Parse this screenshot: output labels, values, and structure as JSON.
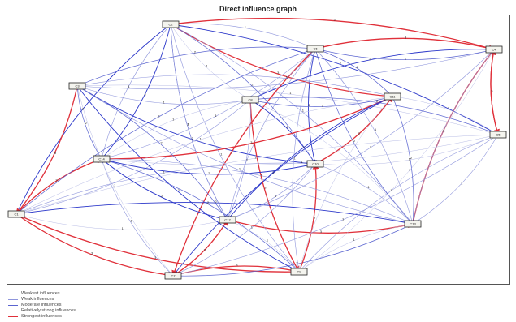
{
  "title": "Direct influence graph",
  "colors": {
    "weakest": "#b9bde6",
    "weak": "#8f96dc",
    "moderate": "#5a64d0",
    "relatively_strong": "#2a36c9",
    "strongest": "#e0303a"
  },
  "legend": [
    {
      "key": "weakest",
      "label": "Weakest influences"
    },
    {
      "key": "weak",
      "label": "Weak influences"
    },
    {
      "key": "moderate",
      "label": "Moderate influences"
    },
    {
      "key": "relatively_strong",
      "label": "Relatively strong influences"
    },
    {
      "key": "strongest",
      "label": "Strongest influences"
    }
  ],
  "nodes": [
    {
      "id": "n1",
      "label": "C1"
    },
    {
      "id": "n2",
      "label": "C2"
    },
    {
      "id": "n3",
      "label": "C3"
    },
    {
      "id": "n4",
      "label": "C4"
    },
    {
      "id": "n5",
      "label": "C5"
    },
    {
      "id": "n6",
      "label": "C6"
    },
    {
      "id": "n7",
      "label": "C7"
    },
    {
      "id": "n8",
      "label": "C8"
    },
    {
      "id": "n9",
      "label": "C9"
    },
    {
      "id": "n10",
      "label": "C10"
    },
    {
      "id": "n11",
      "label": "C11"
    },
    {
      "id": "n12",
      "label": "C12"
    },
    {
      "id": "n13",
      "label": "C13"
    },
    {
      "id": "n14",
      "label": "C14"
    }
  ],
  "edges": [
    {
      "from": "n1",
      "to": "n7",
      "level": "strongest",
      "label": "3"
    },
    {
      "from": "n1",
      "to": "n14",
      "level": "strongest",
      "label": "3"
    },
    {
      "from": "n1",
      "to": "n9",
      "level": "strongest",
      "label": "3"
    },
    {
      "from": "n1",
      "to": "n2",
      "level": "relatively_strong",
      "label": "2"
    },
    {
      "from": "n1",
      "to": "n3",
      "level": "moderate",
      "label": "2"
    },
    {
      "from": "n1",
      "to": "n6",
      "level": "moderate",
      "label": "2"
    },
    {
      "from": "n1",
      "to": "n8",
      "level": "weak",
      "label": "1"
    },
    {
      "from": "n1",
      "to": "n10",
      "level": "weak",
      "label": "1"
    },
    {
      "from": "n1",
      "to": "n12",
      "level": "weakest",
      "label": "1"
    },
    {
      "from": "n2",
      "to": "n4",
      "level": "strongest",
      "label": "3"
    },
    {
      "from": "n2",
      "to": "n11",
      "level": "strongest",
      "label": "3"
    },
    {
      "from": "n2",
      "to": "n5",
      "level": "relatively_strong",
      "label": "2"
    },
    {
      "from": "n2",
      "to": "n12",
      "level": "moderate",
      "label": "2"
    },
    {
      "from": "n2",
      "to": "n13",
      "level": "weak",
      "label": "1"
    },
    {
      "from": "n2",
      "to": "n8",
      "level": "weakest",
      "label": "1"
    },
    {
      "from": "n3",
      "to": "n1",
      "level": "strongest",
      "label": "3"
    },
    {
      "from": "n3",
      "to": "n10",
      "level": "relatively_strong",
      "label": "2"
    },
    {
      "from": "n3",
      "to": "n6",
      "level": "moderate",
      "label": "2"
    },
    {
      "from": "n3",
      "to": "n13",
      "level": "weak",
      "label": "1"
    },
    {
      "from": "n3",
      "to": "n5",
      "level": "weakest",
      "label": "1"
    },
    {
      "from": "n4",
      "to": "n5",
      "level": "strongest",
      "label": "3"
    },
    {
      "from": "n5",
      "to": "n4",
      "level": "strongest",
      "label": "3"
    },
    {
      "from": "n4",
      "to": "n8",
      "level": "relatively_strong",
      "label": "2"
    },
    {
      "from": "n4",
      "to": "n6",
      "level": "moderate",
      "label": "2"
    },
    {
      "from": "n5",
      "to": "n8",
      "level": "moderate",
      "label": "2"
    },
    {
      "from": "n5",
      "to": "n13",
      "level": "weak",
      "label": "1"
    },
    {
      "from": "n6",
      "to": "n7",
      "level": "strongest",
      "label": "3"
    },
    {
      "from": "n6",
      "to": "n4",
      "level": "strongest",
      "label": "3"
    },
    {
      "from": "n6",
      "to": "n10",
      "level": "relatively_strong",
      "label": "2"
    },
    {
      "from": "n6",
      "to": "n11",
      "level": "moderate",
      "label": "2"
    },
    {
      "from": "n6",
      "to": "n12",
      "level": "weak",
      "label": "1"
    },
    {
      "from": "n7",
      "to": "n9",
      "level": "strongest",
      "label": "3"
    },
    {
      "from": "n7",
      "to": "n12",
      "level": "strongest",
      "label": "3"
    },
    {
      "from": "n7",
      "to": "n11",
      "level": "relatively_strong",
      "label": "2"
    },
    {
      "from": "n7",
      "to": "n13",
      "level": "moderate",
      "label": "2"
    },
    {
      "from": "n7",
      "to": "n14",
      "level": "weak",
      "label": "1"
    },
    {
      "from": "n8",
      "to": "n9",
      "level": "strongest",
      "label": "3"
    },
    {
      "from": "n8",
      "to": "n10",
      "level": "relatively_strong",
      "label": "2"
    },
    {
      "from": "n8",
      "to": "n11",
      "level": "moderate",
      "label": "2"
    },
    {
      "from": "n8",
      "to": "n12",
      "level": "weak",
      "label": "1"
    },
    {
      "from": "n9",
      "to": "n10",
      "level": "strongest",
      "label": "3"
    },
    {
      "from": "n9",
      "to": "n3",
      "level": "relatively_strong",
      "label": "2"
    },
    {
      "from": "n9",
      "to": "n14",
      "level": "moderate",
      "label": "2"
    },
    {
      "from": "n9",
      "to": "n5",
      "level": "weak",
      "label": "1"
    },
    {
      "from": "n10",
      "to": "n11",
      "level": "strongest",
      "label": "3"
    },
    {
      "from": "n10",
      "to": "n14",
      "level": "relatively_strong",
      "label": "2"
    },
    {
      "from": "n10",
      "to": "n2",
      "level": "moderate",
      "label": "2"
    },
    {
      "from": "n11",
      "to": "n14",
      "level": "strongest",
      "label": "3"
    },
    {
      "from": "n11",
      "to": "n12",
      "level": "relatively_strong",
      "label": "2"
    },
    {
      "from": "n11",
      "to": "n13",
      "level": "moderate",
      "label": "2"
    },
    {
      "from": "n12",
      "to": "n13",
      "level": "strongest",
      "label": "3"
    },
    {
      "from": "n12",
      "to": "n14",
      "level": "relatively_strong",
      "label": "2"
    },
    {
      "from": "n12",
      "to": "n3",
      "level": "moderate",
      "label": "2"
    },
    {
      "from": "n13",
      "to": "n4",
      "level": "strongest",
      "label": "3"
    },
    {
      "from": "n13",
      "to": "n1",
      "level": "relatively_strong",
      "label": "2"
    },
    {
      "from": "n13",
      "to": "n6",
      "level": "moderate",
      "label": "2"
    },
    {
      "from": "n14",
      "to": "n2",
      "level": "relatively_strong",
      "label": "2"
    },
    {
      "from": "n14",
      "to": "n3",
      "level": "moderate",
      "label": "2"
    },
    {
      "from": "n14",
      "to": "n6",
      "level": "weak",
      "label": "1"
    },
    {
      "from": "n2",
      "to": "n6",
      "level": "weak",
      "label": "1"
    },
    {
      "from": "n4",
      "to": "n13",
      "level": "weak",
      "label": "1"
    },
    {
      "from": "n5",
      "to": "n10",
      "level": "weakest",
      "label": "1"
    },
    {
      "from": "n3",
      "to": "n8",
      "level": "weak",
      "label": "1"
    },
    {
      "from": "n1",
      "to": "n11",
      "level": "weakest",
      "label": "1"
    },
    {
      "from": "n2",
      "to": "n9",
      "level": "weak",
      "label": "1"
    },
    {
      "from": "n6",
      "to": "n13",
      "level": "weak",
      "label": "1"
    },
    {
      "from": "n8",
      "to": "n14",
      "level": "weakest",
      "label": "1"
    },
    {
      "from": "n4",
      "to": "n12",
      "level": "weak",
      "label": "1"
    },
    {
      "from": "n5",
      "to": "n11",
      "level": "weakest",
      "label": "1"
    },
    {
      "from": "n3",
      "to": "n11",
      "level": "weak",
      "label": "1"
    },
    {
      "from": "n9",
      "to": "n12",
      "level": "weakest",
      "label": "1"
    },
    {
      "from": "n10",
      "to": "n13",
      "level": "weak",
      "label": "1"
    },
    {
      "from": "n7",
      "to": "n5",
      "level": "weak",
      "label": "1"
    },
    {
      "from": "n4",
      "to": "n9",
      "level": "weakest",
      "label": "1"
    },
    {
      "from": "n6",
      "to": "n9",
      "level": "weak",
      "label": "1"
    },
    {
      "from": "n8",
      "to": "n13",
      "level": "weakest",
      "label": "1"
    },
    {
      "from": "n2",
      "to": "n14",
      "level": "weak",
      "label": "1"
    },
    {
      "from": "n1",
      "to": "n5",
      "level": "weakest",
      "label": "1"
    },
    {
      "from": "n3",
      "to": "n4",
      "level": "weak",
      "label": "1"
    },
    {
      "from": "n10",
      "to": "n12",
      "level": "weak",
      "label": "1"
    },
    {
      "from": "n11",
      "to": "n9",
      "level": "weakest",
      "label": "1"
    },
    {
      "from": "n5",
      "to": "n14",
      "level": "weakest",
      "label": "1"
    },
    {
      "from": "n7",
      "to": "n10",
      "level": "weak",
      "label": "1"
    },
    {
      "from": "n6",
      "to": "n8",
      "level": "weak",
      "label": "1"
    },
    {
      "from": "n3",
      "to": "n7",
      "level": "weakest",
      "label": "1"
    },
    {
      "from": "n12",
      "to": "n2",
      "level": "weak",
      "label": "1"
    },
    {
      "from": "n13",
      "to": "n9",
      "level": "weakest",
      "label": "1"
    },
    {
      "from": "n14",
      "to": "n13",
      "level": "weak",
      "label": "1"
    }
  ]
}
